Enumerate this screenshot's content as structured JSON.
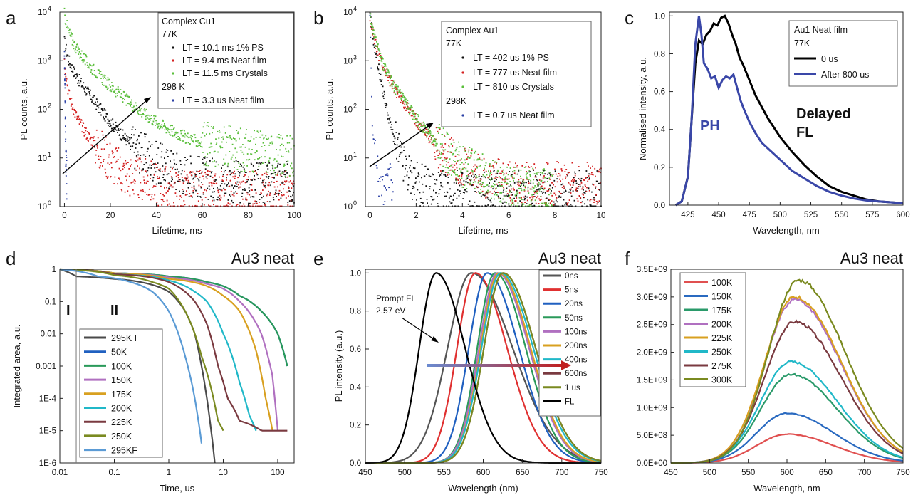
{
  "panels": {
    "a": {
      "letter": "a",
      "legend": [
        "Complex Cu1",
        "77K",
        "LT = 10.1 ms 1% PS",
        "LT = 9.4 ms Neat film",
        "LT = 11.5 ms Crystals",
        "298 K",
        "LT = 3.3 us Neat film"
      ]
    },
    "b": {
      "letter": "b",
      "legend": [
        "Complex Au1",
        "77K",
        "LT = 402 us 1% PS",
        "LT = 777 us Neat film",
        "LT = 810 us Crystals",
        "298K",
        "LT = 0.7 us Neat film"
      ]
    },
    "c": {
      "letter": "c",
      "legend": [
        "Au1 Neat film",
        "77K",
        "0 us",
        "After 800 us"
      ],
      "labels": [
        "PH",
        "Delayed",
        "FL"
      ]
    },
    "d": {
      "letter": "d",
      "title": "Au3 neat",
      "labels": [
        "I",
        "II"
      ]
    },
    "e": {
      "letter": "e",
      "title": "Au3 neat",
      "labels": [
        "Prompt FL",
        "2.57 eV"
      ]
    },
    "f": {
      "letter": "f",
      "title": "Au3 neat"
    }
  },
  "chart_data": [
    {
      "id": "a",
      "type": "scatter",
      "title": "",
      "xlabel": "Lifetime, ms",
      "ylabel": "PL counts, a.u.",
      "xlim": [
        -2,
        100
      ],
      "ylim": [
        1,
        10000
      ],
      "yscale": "log",
      "xticks": [
        "0",
        "20",
        "40",
        "60",
        "80",
        "100"
      ],
      "yticks": [
        "10^0",
        "10^1",
        "10^2",
        "10^3",
        "10^4"
      ],
      "series": [
        {
          "name": "LT = 10.1 ms 1% PS",
          "color": "#111111",
          "x": [
            0,
            1,
            2,
            4,
            6,
            10,
            15,
            20,
            25,
            30,
            40,
            50,
            60,
            80,
            100
          ],
          "y": [
            2500,
            1500,
            1000,
            600,
            420,
            230,
            110,
            55,
            30,
            17,
            8,
            5,
            4,
            3,
            3
          ]
        },
        {
          "name": "LT = 9.4 ms Neat film",
          "color": "#d42020",
          "x": [
            0,
            1,
            2,
            4,
            6,
            10,
            15,
            20,
            25,
            30,
            40,
            50,
            60,
            80,
            100
          ],
          "y": [
            1000,
            400,
            200,
            100,
            60,
            30,
            16,
            9,
            5,
            4,
            3,
            2,
            2,
            2,
            2
          ]
        },
        {
          "name": "LT = 11.5 ms Crystals",
          "color": "#5bbf3c",
          "x": [
            0,
            1,
            2,
            4,
            6,
            10,
            15,
            20,
            25,
            30,
            40,
            50,
            60,
            80,
            100
          ],
          "y": [
            9000,
            5500,
            3800,
            2300,
            1600,
            900,
            500,
            300,
            190,
            120,
            55,
            30,
            20,
            14,
            11
          ]
        },
        {
          "name": "LT = 3.3 us Neat film",
          "color": "#2a3fa5",
          "x": [
            0,
            0.3,
            0.6,
            1
          ],
          "y": [
            1500,
            200,
            10,
            3
          ]
        }
      ]
    },
    {
      "id": "b",
      "type": "scatter",
      "title": "",
      "xlabel": "Lifetime, ms",
      "ylabel": "PL counts, a.u.",
      "xlim": [
        -0.2,
        10
      ],
      "ylim": [
        1,
        10000
      ],
      "yscale": "log",
      "xticks": [
        "0",
        "2",
        "4",
        "6",
        "8",
        "10"
      ],
      "yticks": [
        "10^0",
        "10^1",
        "10^2",
        "10^3",
        "10^4"
      ],
      "series": [
        {
          "name": "LT = 402 us 1% PS",
          "color": "#111111",
          "x": [
            0,
            0.2,
            0.4,
            0.6,
            0.8,
            1,
            1.3,
            1.6,
            2,
            3,
            5,
            8,
            10
          ],
          "y": [
            8000,
            2000,
            600,
            200,
            70,
            30,
            10,
            5,
            3,
            2,
            2,
            2,
            2
          ]
        },
        {
          "name": "LT = 777 us Neat film",
          "color": "#d42020",
          "x": [
            0,
            0.2,
            0.5,
            1,
            1.5,
            2,
            2.5,
            3,
            4,
            5,
            6,
            8,
            10
          ],
          "y": [
            8000,
            2500,
            900,
            300,
            130,
            60,
            30,
            15,
            6,
            4,
            3,
            3,
            3
          ]
        },
        {
          "name": "LT = 810 us Crystals",
          "color": "#5bbf3c",
          "x": [
            0,
            0.2,
            0.5,
            1,
            1.5,
            2,
            2.5,
            3,
            4,
            5,
            6,
            7,
            7.9
          ],
          "y": [
            9000,
            3000,
            1000,
            320,
            140,
            65,
            32,
            18,
            7,
            4,
            3,
            2.3,
            2
          ]
        },
        {
          "name": "LT = 0.7 us Neat film",
          "color": "#2a3fa5",
          "x": [
            0,
            0.1,
            0.3,
            0.6,
            1
          ],
          "y": [
            9000,
            50,
            5,
            3,
            3
          ]
        }
      ]
    },
    {
      "id": "c",
      "type": "line",
      "title": "",
      "xlabel": "Wavelength, nm",
      "ylabel": "Normalised intensity, a.u.",
      "xlim": [
        410,
        600
      ],
      "ylim": [
        0,
        1.02
      ],
      "xticks": [
        "425",
        "450",
        "475",
        "500",
        "525",
        "550",
        "575",
        "600"
      ],
      "yticks": [
        "0.0",
        "0.2",
        "0.4",
        "0.6",
        "0.8",
        "1.0"
      ],
      "series": [
        {
          "name": "0 us",
          "color": "#000000",
          "x": [
            415,
            420,
            425,
            428,
            431,
            434,
            437,
            440,
            443,
            446,
            449,
            452,
            455,
            458,
            461,
            464,
            467,
            470,
            475,
            480,
            490,
            500,
            510,
            520,
            530,
            540,
            550,
            560,
            570,
            580,
            590,
            600
          ],
          "y": [
            0,
            0.02,
            0.15,
            0.45,
            0.75,
            0.87,
            0.85,
            0.9,
            0.92,
            0.96,
            0.95,
            0.99,
            1.0,
            0.96,
            0.9,
            0.85,
            0.78,
            0.74,
            0.66,
            0.58,
            0.46,
            0.36,
            0.28,
            0.21,
            0.15,
            0.1,
            0.07,
            0.05,
            0.03,
            0.02,
            0.015,
            0.01
          ]
        },
        {
          "name": "After 800 us",
          "color": "#3a47a8",
          "x": [
            415,
            420,
            425,
            428,
            431,
            434,
            436,
            438,
            441,
            444,
            447,
            450,
            453,
            456,
            459,
            462,
            465,
            468,
            471,
            475,
            480,
            485,
            490,
            500,
            510,
            520,
            530,
            540,
            550,
            560,
            570,
            580,
            590,
            600
          ],
          "y": [
            0,
            0.02,
            0.15,
            0.45,
            0.85,
            1.0,
            0.9,
            0.75,
            0.72,
            0.67,
            0.68,
            0.62,
            0.66,
            0.68,
            0.67,
            0.69,
            0.62,
            0.55,
            0.5,
            0.44,
            0.38,
            0.33,
            0.3,
            0.24,
            0.18,
            0.14,
            0.1,
            0.07,
            0.05,
            0.035,
            0.025,
            0.02,
            0.015,
            0.01
          ]
        }
      ]
    },
    {
      "id": "d",
      "type": "line",
      "title": "Au3 neat",
      "xlabel": "Time, us",
      "ylabel": "Integrated area, a.u.",
      "xlim": [
        0.01,
        200
      ],
      "ylim": [
        1e-06,
        1
      ],
      "xscale": "log",
      "yscale": "log",
      "xticks": [
        "0.01",
        "0.1",
        "1",
        "10",
        "100"
      ],
      "yticks": [
        "1",
        "0.1",
        "0.01",
        "0.001",
        "1E-4",
        "1E-5",
        "1E-6"
      ],
      "series": [
        {
          "name": "295K I",
          "color": "#4a4a4a",
          "x": [
            0.01,
            0.02,
            0.05,
            0.1,
            0.3,
            1,
            2,
            3,
            4,
            5,
            6,
            7
          ],
          "y": [
            1,
            0.6,
            0.55,
            0.5,
            0.4,
            0.2,
            0.05,
            0.01,
            0.001,
            0.0001,
            1e-05,
            1e-06
          ]
        },
        {
          "name": "50K",
          "color": "#2060c0",
          "x": [
            0.01,
            0.1,
            1,
            5,
            10,
            20,
            50,
            100,
            150
          ],
          "y": [
            1,
            0.75,
            0.6,
            0.4,
            0.3,
            0.15,
            0.05,
            0.01,
            0.001
          ]
        },
        {
          "name": "100K",
          "color": "#2a9a5a",
          "x": [
            0.01,
            0.1,
            1,
            5,
            10,
            20,
            50,
            100,
            150
          ],
          "y": [
            1,
            0.75,
            0.6,
            0.4,
            0.3,
            0.15,
            0.05,
            0.01,
            0.001
          ]
        },
        {
          "name": "150K",
          "color": "#b070c0",
          "x": [
            0.01,
            0.1,
            1,
            5,
            10,
            20,
            50,
            80,
            100
          ],
          "y": [
            1,
            0.75,
            0.55,
            0.35,
            0.25,
            0.1,
            0.01,
            0.0005,
            1e-05
          ]
        },
        {
          "name": "175K",
          "color": "#d8a020",
          "x": [
            0.01,
            0.1,
            1,
            5,
            10,
            20,
            40,
            60,
            80
          ],
          "y": [
            1,
            0.75,
            0.5,
            0.3,
            0.15,
            0.05,
            0.003,
            0.0001,
            1e-05
          ]
        },
        {
          "name": "200K",
          "color": "#20b8c8",
          "x": [
            0.01,
            0.1,
            1,
            3,
            5,
            10,
            20,
            30,
            40
          ],
          "y": [
            1,
            0.7,
            0.45,
            0.2,
            0.1,
            0.01,
            0.0003,
            3e-05,
            1e-05
          ]
        },
        {
          "name": "225K",
          "color": "#7a3a40",
          "x": [
            0.01,
            0.1,
            1,
            3,
            5,
            8,
            12,
            20,
            50,
            100,
            150
          ],
          "y": [
            1,
            0.7,
            0.4,
            0.1,
            0.02,
            0.001,
            0.0001,
            2e-05,
            1e-05,
            1e-05,
            1e-05
          ]
        },
        {
          "name": "250K",
          "color": "#7a8a20",
          "x": [
            0.01,
            0.1,
            0.5,
            1,
            2,
            4,
            6,
            8,
            10
          ],
          "y": [
            1,
            0.65,
            0.4,
            0.25,
            0.05,
            0.002,
            0.0002,
            2e-05,
            1e-05
          ]
        },
        {
          "name": "295KF",
          "color": "#5b9bd5",
          "x": [
            0.01,
            0.05,
            0.2,
            0.5,
            1,
            2,
            3,
            4
          ],
          "y": [
            1,
            0.6,
            0.4,
            0.2,
            0.05,
            0.002,
            0.0001,
            4e-06
          ]
        }
      ]
    },
    {
      "id": "e",
      "type": "line",
      "title": "Au3 neat",
      "xlabel": "Wavelength (nm)",
      "ylabel": "PL intensity (a.u.)",
      "xlim": [
        450,
        750
      ],
      "ylim": [
        0,
        1.02
      ],
      "xticks": [
        "450",
        "500",
        "550",
        "600",
        "650",
        "700",
        "750"
      ],
      "yticks": [
        "0.0",
        "0.2",
        "0.4",
        "0.6",
        "0.8",
        "1.0"
      ],
      "series": [
        {
          "name": "0ns",
          "color": "#555555",
          "peak": 585,
          "width": 78
        },
        {
          "name": "5ns",
          "color": "#e03030",
          "peak": 590,
          "width": 60
        },
        {
          "name": "20ns",
          "color": "#2060c0",
          "peak": 605,
          "width": 60
        },
        {
          "name": "50ns",
          "color": "#2a9a5a",
          "peak": 615,
          "width": 58
        },
        {
          "name": "100ns",
          "color": "#b070c0",
          "peak": 618,
          "width": 60
        },
        {
          "name": "200ns",
          "color": "#d8a020",
          "peak": 620,
          "width": 60
        },
        {
          "name": "400ns",
          "color": "#20b8c8",
          "peak": 622,
          "width": 62
        },
        {
          "name": "600ns",
          "color": "#7a3a40",
          "peak": 625,
          "width": 62
        },
        {
          "name": "1 us",
          "color": "#7a8a20",
          "peak": 625,
          "width": 62
        },
        {
          "name": "FL",
          "color": "#000000",
          "peak": 540,
          "width": 55
        }
      ]
    },
    {
      "id": "f",
      "type": "line",
      "title": "Au3 neat",
      "xlabel": "Wavelength, nm",
      "ylabel": "",
      "xlim": [
        450,
        750
      ],
      "ylim": [
        0,
        3500000000
      ],
      "xticks": [
        "450",
        "500",
        "550",
        "600",
        "650",
        "700",
        "750"
      ],
      "yticks": [
        "0.0E+00",
        "5.0E+08",
        "1.0E+09",
        "1.5E+09",
        "2.0E+09",
        "2.5E+09",
        "3.0E+09",
        "3.5E+09"
      ],
      "series": [
        {
          "name": "100K",
          "color": "#e05050",
          "peak": 600,
          "value": 520000000
        },
        {
          "name": "150K",
          "color": "#2a6ac0",
          "peak": 600,
          "value": 900000000
        },
        {
          "name": "175K",
          "color": "#2a9a6a",
          "peak": 605,
          "value": 1600000000
        },
        {
          "name": "200K",
          "color": "#b070c0",
          "peak": 610,
          "value": 2950000000
        },
        {
          "name": "225K",
          "color": "#d8a020",
          "peak": 610,
          "value": 3000000000
        },
        {
          "name": "250K",
          "color": "#20b8c8",
          "peak": 605,
          "value": 1830000000
        },
        {
          "name": "275K",
          "color": "#7a3a40",
          "peak": 610,
          "value": 2550000000
        },
        {
          "name": "300K",
          "color": "#7a8a20",
          "peak": 615,
          "value": 3300000000
        }
      ]
    }
  ]
}
